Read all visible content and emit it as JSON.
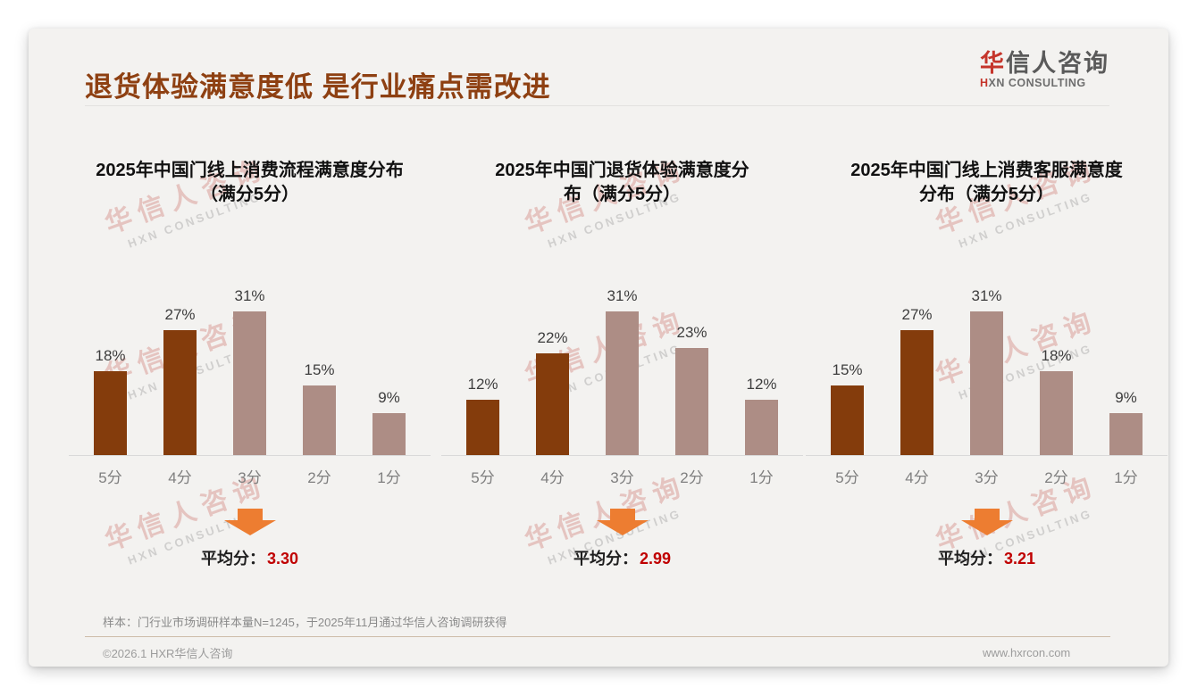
{
  "page": {
    "title": "退货体验满意度低 是行业痛点需改进",
    "logo": {
      "cn_first": "华",
      "cn_rest": "信人咨询",
      "en_first": "H",
      "en_rest": "XN CONSULTING"
    },
    "watermark": {
      "line1": "华信人咨询",
      "line2": "HXN CONSULTING"
    },
    "footnote": "样本：门行业市场调研样本量N=1245，于2025年11月通过华信人咨询调研获得",
    "copyright": "©2026.1 HXR华信人咨询",
    "website": "www.hxrcon.com"
  },
  "colors": {
    "title_brown": "#8e4012",
    "bar_dark": "#843c0c",
    "bar_light": "#ad8d85",
    "accent_red": "#c00000",
    "arrow_orange": "#ed7d31"
  },
  "average_label": "平均分：",
  "chart_data": [
    {
      "type": "bar",
      "title": "2025年中国门线上消费流程满意度分布（满分5分）",
      "title_lines": [
        "2025年中国门线上消费流程满意度分布",
        "（满分5分）"
      ],
      "categories": [
        "5分",
        "4分",
        "3分",
        "2分",
        "1分"
      ],
      "values": [
        18,
        27,
        31,
        15,
        9
      ],
      "value_labels": [
        "18%",
        "27%",
        "31%",
        "15%",
        "9%"
      ],
      "bar_colors": [
        "#843c0c",
        "#843c0c",
        "#ad8d85",
        "#ad8d85",
        "#ad8d85"
      ],
      "unit": "%",
      "ylim": [
        0,
        35
      ],
      "grid": false,
      "average": "3.30"
    },
    {
      "type": "bar",
      "title": "2025年中国门退货体验满意度分布（满分5分）",
      "title_lines": [
        "2025年中国门退货体验满意度分",
        "布（满分5分）"
      ],
      "categories": [
        "5分",
        "4分",
        "3分",
        "2分",
        "1分"
      ],
      "values": [
        12,
        22,
        31,
        23,
        12
      ],
      "value_labels": [
        "12%",
        "22%",
        "31%",
        "23%",
        "12%"
      ],
      "bar_colors": [
        "#843c0c",
        "#843c0c",
        "#ad8d85",
        "#ad8d85",
        "#ad8d85"
      ],
      "unit": "%",
      "ylim": [
        0,
        35
      ],
      "grid": false,
      "average": "2.99"
    },
    {
      "type": "bar",
      "title": "2025年中国门线上消费客服满意度分布（满分5分）",
      "title_lines": [
        "2025年中国门线上消费客服满意度",
        "分布（满分5分）"
      ],
      "categories": [
        "5分",
        "4分",
        "3分",
        "2分",
        "1分"
      ],
      "values": [
        15,
        27,
        31,
        18,
        9
      ],
      "value_labels": [
        "15%",
        "27%",
        "31%",
        "18%",
        "9%"
      ],
      "bar_colors": [
        "#843c0c",
        "#843c0c",
        "#ad8d85",
        "#ad8d85",
        "#ad8d85"
      ],
      "unit": "%",
      "ylim": [
        0,
        35
      ],
      "grid": false,
      "average": "3.21"
    }
  ]
}
